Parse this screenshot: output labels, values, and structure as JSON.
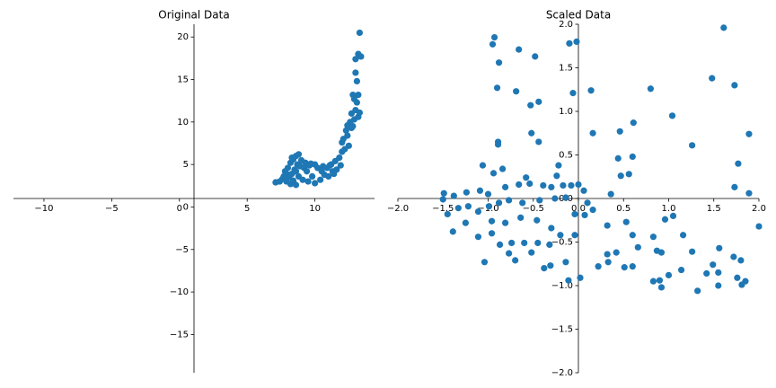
{
  "chart_data": [
    {
      "type": "scatter",
      "title": "Original Data",
      "color": "#1f77b4",
      "xlim": [
        -12.25,
        14.4
      ],
      "ylim": [
        -19.5,
        21.5
      ],
      "xticks": [
        {
          "value": -10,
          "label": "−10"
        },
        {
          "value": -5,
          "label": "−5"
        },
        0,
        5,
        10
      ],
      "yticks": [
        {
          "value": -15,
          "label": "−15"
        },
        {
          "value": -10,
          "label": "−10"
        },
        {
          "value": -5,
          "label": "−5"
        },
        0,
        5,
        10,
        15,
        20
      ],
      "x": [
        7.1,
        7.4,
        7.6,
        7.8,
        7.9,
        8.0,
        8.1,
        8.2,
        8.2,
        8.3,
        8.4,
        8.4,
        8.5,
        8.6,
        8.6,
        8.7,
        8.8,
        8.8,
        8.9,
        9.0,
        9.1,
        9.2,
        9.3,
        9.5,
        9.6,
        9.8,
        10.0,
        10.0,
        10.2,
        10.4,
        10.5,
        10.7,
        10.9,
        11.0,
        11.2,
        11.3,
        11.5,
        11.6,
        11.8,
        11.9,
        12.0,
        12.0,
        12.1,
        12.2,
        12.3,
        12.4,
        12.4,
        12.5,
        12.6,
        12.7,
        12.7,
        12.8,
        12.9,
        12.9,
        13.0,
        13.0,
        13.0,
        13.1,
        13.1,
        13.2,
        13.2,
        13.2,
        13.3,
        13.4,
        13.3,
        8.0,
        8.3,
        8.6,
        9.4,
        10.6,
        11.4,
        12.8,
        7.7,
        9.7,
        11.1
      ],
      "y": [
        2.9,
        3.0,
        3.3,
        4.2,
        3.0,
        4.6,
        3.5,
        5.2,
        2.7,
        3.9,
        5.6,
        3.1,
        4.4,
        6.0,
        2.6,
        5.0,
        6.2,
        3.6,
        4.8,
        5.5,
        3.2,
        4.6,
        5.2,
        3.0,
        4.9,
        3.6,
        5.0,
        2.8,
        4.6,
        3.2,
        4.2,
        3.8,
        4.6,
        3.6,
        5.0,
        4.2,
        5.4,
        4.4,
        5.8,
        4.9,
        6.5,
        7.6,
        8.0,
        6.8,
        9.0,
        8.4,
        9.6,
        7.2,
        10.0,
        9.3,
        11.0,
        13.2,
        12.7,
        10.3,
        15.8,
        17.4,
        11.4,
        14.8,
        12.3,
        18.0,
        13.2,
        10.6,
        20.5,
        17.7,
        11.1,
        3.8,
        5.8,
        4.2,
        4.2,
        4.8,
        3.9,
        9.5,
        3.6,
        5.1,
        4.9
      ]
    },
    {
      "type": "scatter",
      "title": "Scaled Data",
      "color": "#1f77b4",
      "xlim": [
        -2.0,
        2.0
      ],
      "ylim": [
        -2.0,
        2.0
      ],
      "xticks": [
        {
          "value": -2.0,
          "label": "−2.0"
        },
        {
          "value": -1.5,
          "label": "−1.5"
        },
        {
          "value": -1.0,
          "label": "−1.0"
        },
        {
          "value": -0.5,
          "label": "−0.5"
        },
        {
          "value": 0.0,
          "label": "0.0"
        },
        {
          "value": 0.5,
          "label": "0.5"
        },
        {
          "value": 1.0,
          "label": "1.0"
        },
        {
          "value": 1.5,
          "label": "1.5"
        },
        {
          "value": 2.0,
          "label": "2.0"
        }
      ],
      "yticks": [
        {
          "value": -2.0,
          "label": "−2.0"
        },
        {
          "value": -1.5,
          "label": "−1.5"
        },
        {
          "value": -1.0,
          "label": "−1.0"
        },
        {
          "value": -0.5,
          "label": "−0.5"
        },
        {
          "value": 0.0,
          "label": "0.0"
        },
        {
          "value": 0.5,
          "label": "0.5"
        },
        {
          "value": 1.0,
          "label": "1.0"
        },
        {
          "value": 1.5,
          "label": "1.5"
        },
        {
          "value": 2.0,
          "label": "2.0"
        }
      ],
      "x": [
        -0.93,
        -0.95,
        -0.66,
        -0.48,
        -0.88,
        -0.1,
        -0.02,
        1.61,
        -0.9,
        -0.69,
        -0.44,
        -0.53,
        -0.06,
        0.14,
        0.8,
        1.48,
        1.73,
        1.04,
        0.61,
        0.46,
        0.16,
        -0.52,
        -0.44,
        -0.89,
        -0.89,
        1.26,
        1.89,
        0.6,
        0.44,
        -1.06,
        -0.22,
        1.77,
        -0.84,
        -0.94,
        0.56,
        0.47,
        -0.58,
        -0.24,
        -0.54,
        1.73,
        1.89,
        0.36,
        -0.81,
        -0.66,
        0.0,
        -0.08,
        -0.17,
        -0.3,
        -0.39,
        -1.49,
        -1.38,
        -1.24,
        -1.09,
        -1.0,
        -1.5,
        -1.45,
        -1.33,
        -1.22,
        -1.11,
        -0.99,
        -0.88,
        -0.77,
        -0.62,
        -0.43,
        -0.26,
        -0.14,
        0.06,
        0.1,
        -0.04,
        0.07,
        0.16,
        0.32,
        0.53,
        0.6,
        0.66,
        0.83,
        0.96,
        1.05,
        1.16,
        0.87,
        0.92,
        1.26,
        1.56,
        1.72,
        1.8,
        2.0,
        1.55,
        1.49,
        1.42,
        1.76,
        1.85,
        1.81,
        1.55,
        1.32,
        1.14,
        1.0,
        0.9,
        0.92,
        0.83,
        0.6,
        0.51,
        0.33,
        0.22,
        0.42,
        0.32,
        0.02,
        -0.11,
        -0.38,
        -0.31,
        -0.14,
        -0.52,
        -0.7,
        -0.77,
        -1.04,
        -1.39,
        -1.25,
        -0.96,
        -0.81,
        -0.64,
        -0.46,
        -0.3,
        -0.2,
        -0.04,
        -0.74,
        -0.87,
        -0.6,
        -0.45,
        -0.32,
        -0.96,
        -1.11
      ],
      "y": [
        1.85,
        1.77,
        1.71,
        1.63,
        1.56,
        1.78,
        1.8,
        1.96,
        1.27,
        1.23,
        1.11,
        1.07,
        1.21,
        1.24,
        1.26,
        1.38,
        1.3,
        0.95,
        0.87,
        0.77,
        0.75,
        0.75,
        0.65,
        0.65,
        0.62,
        0.61,
        0.74,
        0.48,
        0.46,
        0.38,
        0.38,
        0.4,
        0.34,
        0.29,
        0.28,
        0.26,
        0.24,
        0.26,
        0.17,
        0.13,
        0.06,
        0.05,
        0.13,
        0.16,
        0.16,
        0.15,
        0.15,
        0.13,
        0.15,
        0.06,
        0.03,
        0.07,
        0.09,
        0.05,
        -0.01,
        -0.18,
        -0.11,
        -0.09,
        -0.15,
        -0.09,
        -0.05,
        -0.02,
        -0.05,
        -0.02,
        0.0,
        0.01,
        0.09,
        -0.05,
        -0.18,
        -0.19,
        -0.13,
        -0.31,
        -0.27,
        -0.42,
        -0.56,
        -0.44,
        -0.24,
        -0.2,
        -0.42,
        -0.6,
        -0.62,
        -0.61,
        -0.57,
        -0.67,
        -0.71,
        -0.32,
        -0.85,
        -0.76,
        -0.86,
        -0.91,
        -0.95,
        -0.99,
        -1.0,
        -1.06,
        -0.82,
        -0.88,
        -0.94,
        -1.02,
        -0.95,
        -0.78,
        -0.79,
        -0.73,
        -0.78,
        -0.62,
        -0.64,
        -0.91,
        -0.94,
        -0.8,
        -0.77,
        -0.73,
        -0.62,
        -0.71,
        -0.63,
        -0.73,
        -0.38,
        -0.28,
        -0.26,
        -0.28,
        -0.22,
        -0.25,
        -0.34,
        -0.42,
        -0.42,
        -0.51,
        -0.53,
        -0.51,
        -0.51,
        -0.53,
        -0.4,
        -0.44
      ]
    }
  ]
}
